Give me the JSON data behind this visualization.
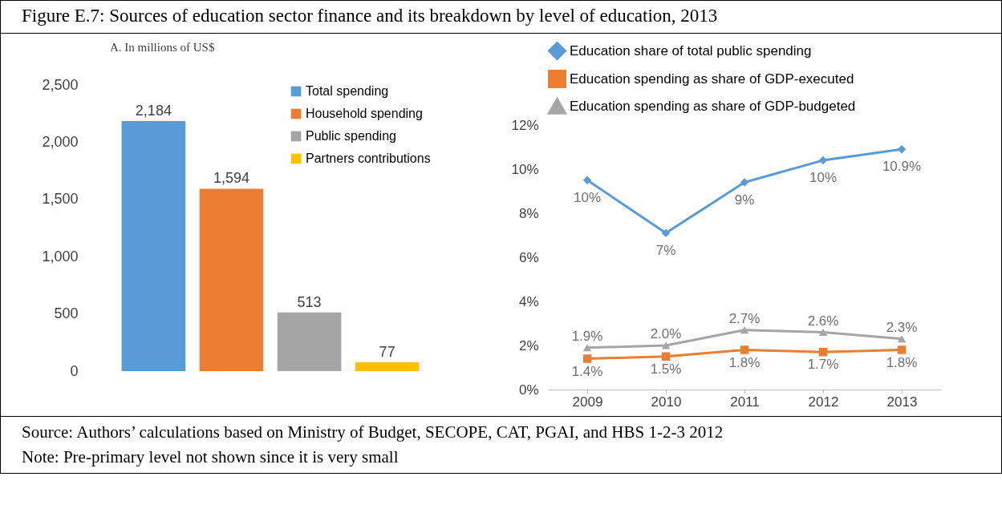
{
  "chart_data": [
    {
      "type": "bar",
      "title": "Figure E.7: Sources of education sector finance and its breakdown by level of education, 2013",
      "subtitle": "A. In millions of US$",
      "annotations": [
        "Source: Authors’ calculations based on Ministry of Budget, SECOPE, CAT, PGAI, and HBS 1-2-3 2012",
        "Note: Pre-primary level not shown since it is very small"
      ],
      "categories": [
        null,
        null,
        null,
        null
      ],
      "series": [
        {
          "name": "Total spending",
          "color": "#5b9bd5",
          "values": [
            2184,
            null,
            null,
            null
          ],
          "value_labels": [
            "2,184",
            null,
            null,
            null
          ]
        },
        {
          "name": "Household spending",
          "color": "#ed7d31",
          "values": [
            null,
            1594,
            null,
            null
          ],
          "value_labels": [
            null,
            "1,594",
            null,
            null
          ]
        },
        {
          "name": "Public spending",
          "color": "#a5a5a5",
          "values": [
            null,
            null,
            513,
            null
          ],
          "value_labels": [
            null,
            null,
            "513",
            null
          ]
        },
        {
          "name": "Partners contributions",
          "color": "#ffc000",
          "values": [
            null,
            null,
            null,
            77
          ],
          "value_labels": [
            null,
            null,
            null,
            "77"
          ]
        }
      ],
      "ylim": [
        0,
        2500
      ],
      "yticks": [
        0,
        {
          "value": 500,
          "label": "500"
        },
        {
          "value": 1000,
          "label": "1,000"
        },
        {
          "value": 1500,
          "label": "1,500"
        },
        {
          "value": 2000,
          "label": "2,000"
        },
        {
          "value": 2500,
          "label": "2,500"
        }
      ],
      "stacked": true,
      "legend": "top right",
      "grid": false
    },
    {
      "type": "line",
      "categories": [
        "2009",
        "2010",
        "2011",
        "2012",
        "2013"
      ],
      "series": [
        {
          "name": "Education share of total public spending",
          "color": "#5b9bd5",
          "marker": "diamond",
          "values": [
            9.5,
            7.1,
            9.4,
            10.4,
            10.9
          ],
          "value_labels": [
            "10%",
            "7%",
            "9%",
            "10%",
            "10.9%"
          ]
        },
        {
          "name": "Education spending as share of GDP-executed",
          "color": "#ed7d31",
          "marker": "square",
          "values": [
            1.4,
            1.5,
            1.8,
            1.7,
            1.8
          ],
          "value_labels": [
            "1.4%",
            "1.5%",
            "1.8%",
            "1.7%",
            "1.8%"
          ]
        },
        {
          "name": "Education spending as share of GDP-budgeted",
          "color": "#a5a5a5",
          "marker": "triangle",
          "values": [
            1.9,
            2.0,
            2.7,
            2.6,
            2.3
          ],
          "value_labels": [
            "1.9%",
            "2.0%",
            "2.7%",
            "2.6%",
            "2.3%"
          ]
        }
      ],
      "ylim": [
        0,
        12
      ],
      "yticks": [
        {
          "value": 0,
          "label": "0%"
        },
        {
          "value": 2,
          "label": "2%"
        },
        {
          "value": 4,
          "label": "4%"
        },
        {
          "value": 6,
          "label": "6%"
        },
        {
          "value": 8,
          "label": "8%"
        },
        {
          "value": 10,
          "label": "10%"
        },
        {
          "value": 12,
          "label": "12%"
        }
      ],
      "legend": "top",
      "grid": false
    }
  ]
}
